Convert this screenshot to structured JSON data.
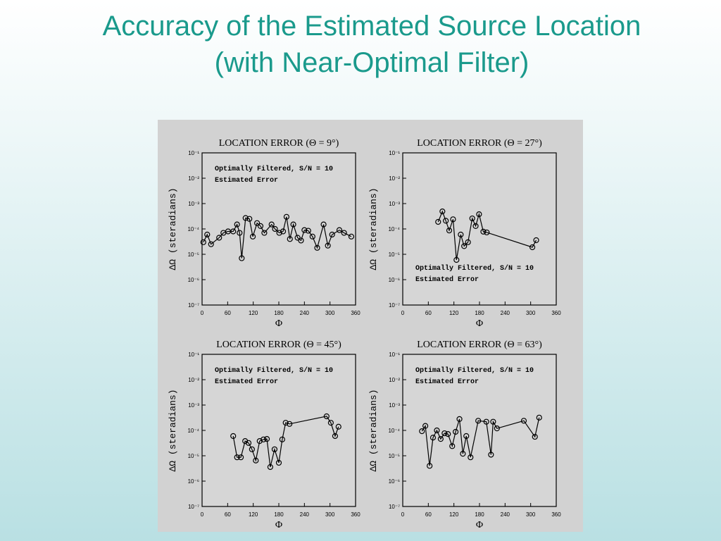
{
  "slide": {
    "title": [
      "Accuracy of the Estimated Source Location",
      "(with Near-Optimal Filter)"
    ]
  },
  "chart_data": [
    {
      "type": "line",
      "title": "LOCATION ERROR (Θ  = 9°)",
      "annotations": [
        "Optimally Filtered, S/N = 10",
        "Estimated Error"
      ],
      "annotation_corner": "upper left",
      "xlabel": "Φ",
      "ylabel": "ΔΩ (steradians)",
      "log_y": true,
      "color": "#000000",
      "x": [
        3,
        12,
        21,
        40,
        50,
        61,
        73,
        82,
        88,
        93,
        102,
        111,
        119,
        129,
        137,
        146,
        163,
        171,
        181,
        190,
        198,
        206,
        214,
        224,
        232,
        240,
        249,
        259,
        270,
        285,
        295,
        305,
        322,
        333,
        350
      ],
      "values": [
        3e-05,
        6e-05,
        2.5e-05,
        4.5e-05,
        7e-05,
        8e-05,
        8e-05,
        0.00015,
        7e-05,
        7e-06,
        0.00027,
        0.00025,
        5e-05,
        0.00017,
        0.00013,
        7e-05,
        0.00015,
        0.0001,
        7e-05,
        8e-05,
        0.0003,
        4e-05,
        0.00015,
        4.5e-05,
        3.5e-05,
        9e-05,
        8.5e-05,
        5e-05,
        1.8e-05,
        0.00015,
        2.2e-05,
        6e-05,
        9e-05,
        7e-05,
        5e-05
      ],
      "xlim": [
        0,
        360
      ],
      "xticks": [
        0,
        60,
        120,
        180,
        240,
        300,
        360
      ],
      "ylim": [
        1e-07,
        0.1
      ],
      "yticks": [
        {
          "value": 0.1,
          "label": "10⁻¹"
        },
        {
          "value": 0.01,
          "label": "10⁻²"
        },
        {
          "value": 0.001,
          "label": "10⁻³"
        },
        {
          "value": 0.0001,
          "label": "10⁻⁴"
        },
        {
          "value": 1e-05,
          "label": "10⁻⁵"
        },
        {
          "value": 1e-06,
          "label": "10⁻⁶"
        },
        {
          "value": 1e-07,
          "label": "10⁻⁷"
        }
      ]
    },
    {
      "type": "line",
      "title": "LOCATION ERROR (Θ  = 27°)",
      "annotations": [
        "Optimally Filtered, S/N = 10",
        "Estimated Error"
      ],
      "annotation_corner": "lower left",
      "xlabel": "Φ",
      "ylabel": "ΔΩ (steradians)",
      "log_y": true,
      "color": "#000000",
      "x": [
        83,
        93,
        101,
        109,
        118,
        126,
        136,
        144,
        153,
        163,
        171,
        179,
        189,
        197,
        304,
        313
      ],
      "values": [
        0.00019,
        0.00049,
        0.00021,
        8.7e-05,
        0.00024,
        6e-06,
        6e-05,
        2.1e-05,
        3e-05,
        0.00026,
        0.00013,
        0.00038,
        7.8e-05,
        7.3e-05,
        1.9e-05,
        3.6e-05
      ],
      "xlim": [
        0,
        360
      ],
      "xticks": [
        0,
        60,
        120,
        180,
        240,
        300,
        360
      ],
      "ylim": [
        1e-07,
        0.1
      ],
      "yticks": [
        {
          "value": 0.1,
          "label": "10⁻¹"
        },
        {
          "value": 0.01,
          "label": "10⁻²"
        },
        {
          "value": 0.001,
          "label": "10⁻³"
        },
        {
          "value": 0.0001,
          "label": "10⁻⁴"
        },
        {
          "value": 1e-05,
          "label": "10⁻⁵"
        },
        {
          "value": 1e-06,
          "label": "10⁻⁶"
        },
        {
          "value": 1e-07,
          "label": "10⁻⁷"
        }
      ]
    },
    {
      "type": "line",
      "title": "LOCATION ERROR (Θ  = 45°)",
      "annotations": [
        "Optimally Filtered, S/N = 10",
        "Estimated Error"
      ],
      "annotation_corner": "upper left",
      "xlabel": "Φ",
      "ylabel": "ΔΩ (steradians)",
      "log_y": true,
      "color": "#000000",
      "x": [
        73,
        82,
        91,
        101,
        109,
        117,
        126,
        135,
        144,
        152,
        160,
        170,
        180,
        188,
        196,
        205,
        292,
        302,
        312,
        320
      ],
      "values": [
        6e-05,
        8.7e-06,
        8.7e-06,
        3.8e-05,
        3.2e-05,
        1.8e-05,
        6.5e-06,
        3.8e-05,
        4.4e-05,
        4.6e-05,
        3.6e-06,
        1.8e-05,
        5.3e-06,
        4.4e-05,
        0.0002,
        0.00018,
        0.00036,
        0.0002,
        6e-05,
        0.00014
      ],
      "xlim": [
        0,
        360
      ],
      "xticks": [
        0,
        60,
        120,
        180,
        240,
        300,
        360
      ],
      "ylim": [
        1e-07,
        0.1
      ],
      "yticks": [
        {
          "value": 0.1,
          "label": "10⁻¹"
        },
        {
          "value": 0.01,
          "label": "10⁻²"
        },
        {
          "value": 0.001,
          "label": "10⁻³"
        },
        {
          "value": 0.0001,
          "label": "10⁻⁴"
        },
        {
          "value": 1e-05,
          "label": "10⁻⁵"
        },
        {
          "value": 1e-06,
          "label": "10⁻⁶"
        },
        {
          "value": 1e-07,
          "label": "10⁻⁷"
        }
      ]
    },
    {
      "type": "line",
      "title": "LOCATION ERROR (Θ  = 63°)",
      "annotations": [
        "Optimally Filtered, S/N = 10",
        "Estimated Error"
      ],
      "annotation_corner": "upper left",
      "xlabel": "Φ",
      "ylabel": "ΔΩ (steradians)",
      "log_y": true,
      "color": "#000000",
      "x": [
        45,
        53,
        63,
        71,
        80,
        89,
        98,
        106,
        116,
        124,
        133,
        141,
        149,
        159,
        177,
        196,
        207,
        212,
        221,
        284,
        310,
        320
      ],
      "values": [
        9.3e-05,
        0.00015,
        4e-06,
        5.2e-05,
        0.0001,
        4.6e-05,
        7.7e-05,
        7.2e-05,
        2.4e-05,
        8.8e-05,
        0.00028,
        1.2e-05,
        6e-05,
        8.7e-06,
        0.00024,
        0.00022,
        1.1e-05,
        0.00022,
        0.00012,
        0.00024,
        5.6e-05,
        0.00032
      ],
      "xlim": [
        0,
        360
      ],
      "xticks": [
        0,
        60,
        120,
        180,
        240,
        300,
        360
      ],
      "ylim": [
        1e-07,
        0.1
      ],
      "yticks": [
        {
          "value": 0.1,
          "label": "10⁻¹"
        },
        {
          "value": 0.01,
          "label": "10⁻²"
        },
        {
          "value": 0.001,
          "label": "10⁻³"
        },
        {
          "value": 0.0001,
          "label": "10⁻⁴"
        },
        {
          "value": 1e-05,
          "label": "10⁻⁵"
        },
        {
          "value": 1e-06,
          "label": "10⁻⁶"
        },
        {
          "value": 1e-07,
          "label": "10⁻⁷"
        }
      ]
    }
  ]
}
